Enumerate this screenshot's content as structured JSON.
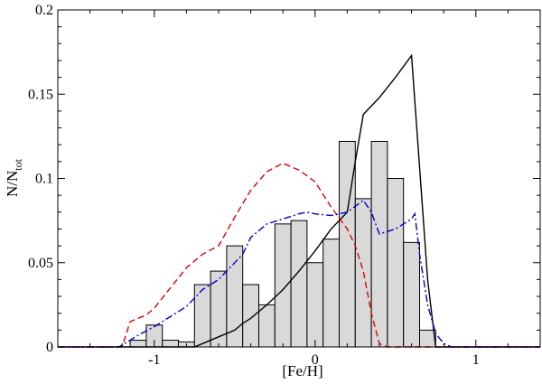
{
  "chart_data": {
    "type": "bar",
    "xlabel": "[Fe/H]",
    "ylabel": {
      "main": "N/N",
      "sub": "tot"
    },
    "xlim": [
      -1.6,
      1.4
    ],
    "ylim": [
      0,
      0.2
    ],
    "xticks": [
      {
        "value": -1,
        "label": "-1"
      },
      {
        "value": 0,
        "label": "0"
      },
      {
        "value": 1,
        "label": "1"
      }
    ],
    "yticks": [
      {
        "value": 0,
        "label": "0"
      },
      {
        "value": 0.05,
        "label": "0.05"
      },
      {
        "value": 0.1,
        "label": "0.1"
      },
      {
        "value": 0.15,
        "label": "0.15"
      },
      {
        "value": 0.2,
        "label": "0.2"
      }
    ],
    "grid": false,
    "colors": {
      "bar_fill": "#d9d9d9",
      "bar_edge": "#000000",
      "solid": "#000000",
      "dashed": "#dd0000",
      "dashdot": "#0000cc"
    },
    "histogram": {
      "bin_width": 0.1,
      "bins": [
        {
          "x0": -1.15,
          "y": 0.004
        },
        {
          "x0": -1.05,
          "y": 0.013
        },
        {
          "x0": -0.95,
          "y": 0.004
        },
        {
          "x0": -0.85,
          "y": 0.003
        },
        {
          "x0": -0.75,
          "y": 0.037
        },
        {
          "x0": -0.65,
          "y": 0.045
        },
        {
          "x0": -0.55,
          "y": 0.06
        },
        {
          "x0": -0.45,
          "y": 0.037
        },
        {
          "x0": -0.35,
          "y": 0.025
        },
        {
          "x0": -0.25,
          "y": 0.073
        },
        {
          "x0": -0.15,
          "y": 0.075
        },
        {
          "x0": -0.05,
          "y": 0.05
        },
        {
          "x0": 0.05,
          "y": 0.064
        },
        {
          "x0": 0.15,
          "y": 0.122
        },
        {
          "x0": 0.25,
          "y": 0.088
        },
        {
          "x0": 0.35,
          "y": 0.122
        },
        {
          "x0": 0.45,
          "y": 0.1
        },
        {
          "x0": 0.55,
          "y": 0.062
        },
        {
          "x0": 0.65,
          "y": 0.01
        }
      ]
    },
    "series": [
      {
        "style": "solid",
        "points": [
          [
            -1.6,
            0
          ],
          [
            -0.75,
            0
          ],
          [
            -0.7,
            0.002
          ],
          [
            -0.6,
            0.006
          ],
          [
            -0.5,
            0.01
          ],
          [
            -0.45,
            0.014
          ],
          [
            -0.4,
            0.017
          ],
          [
            -0.3,
            0.025
          ],
          [
            -0.2,
            0.034
          ],
          [
            -0.1,
            0.045
          ],
          [
            0,
            0.057
          ],
          [
            0.1,
            0.07
          ],
          [
            0.2,
            0.08
          ],
          [
            0.25,
            0.11
          ],
          [
            0.3,
            0.138
          ],
          [
            0.4,
            0.148
          ],
          [
            0.5,
            0.16
          ],
          [
            0.6,
            0.173
          ],
          [
            0.7,
            0.04
          ],
          [
            0.75,
            0
          ],
          [
            1.4,
            0
          ]
        ]
      },
      {
        "style": "dashed",
        "points": [
          [
            -1.6,
            0
          ],
          [
            -1.2,
            0
          ],
          [
            -1.15,
            0.015
          ],
          [
            -1.1,
            0.017
          ],
          [
            -1.05,
            0.019
          ],
          [
            -1.0,
            0.023
          ],
          [
            -0.9,
            0.035
          ],
          [
            -0.8,
            0.047
          ],
          [
            -0.7,
            0.055
          ],
          [
            -0.6,
            0.06
          ],
          [
            -0.5,
            0.077
          ],
          [
            -0.4,
            0.093
          ],
          [
            -0.3,
            0.104
          ],
          [
            -0.2,
            0.109
          ],
          [
            -0.1,
            0.105
          ],
          [
            0,
            0.098
          ],
          [
            0.1,
            0.083
          ],
          [
            0.2,
            0.07
          ],
          [
            0.25,
            0.06
          ],
          [
            0.3,
            0.045
          ],
          [
            0.35,
            0.02
          ],
          [
            0.4,
            0.002
          ],
          [
            0.45,
            0
          ],
          [
            1.4,
            0
          ]
        ]
      },
      {
        "style": "dashdot",
        "points": [
          [
            -1.6,
            0
          ],
          [
            -1.22,
            0
          ],
          [
            -1.15,
            0.004
          ],
          [
            -1.1,
            0.007
          ],
          [
            -1.0,
            0.012
          ],
          [
            -0.9,
            0.018
          ],
          [
            -0.8,
            0.024
          ],
          [
            -0.7,
            0.034
          ],
          [
            -0.6,
            0.04
          ],
          [
            -0.5,
            0.05
          ],
          [
            -0.45,
            0.055
          ],
          [
            -0.4,
            0.065
          ],
          [
            -0.3,
            0.073
          ],
          [
            -0.2,
            0.076
          ],
          [
            -0.1,
            0.079
          ],
          [
            -0.05,
            0.08
          ],
          [
            0,
            0.079
          ],
          [
            0.1,
            0.078
          ],
          [
            0.2,
            0.08
          ],
          [
            0.3,
            0.087
          ],
          [
            0.35,
            0.08
          ],
          [
            0.4,
            0.067
          ],
          [
            0.5,
            0.07
          ],
          [
            0.6,
            0.076
          ],
          [
            0.62,
            0.079
          ],
          [
            0.65,
            0.055
          ],
          [
            0.7,
            0.025
          ],
          [
            0.75,
            0.008
          ],
          [
            0.8,
            0.002
          ],
          [
            0.85,
            0
          ],
          [
            1.4,
            0
          ]
        ]
      }
    ]
  }
}
